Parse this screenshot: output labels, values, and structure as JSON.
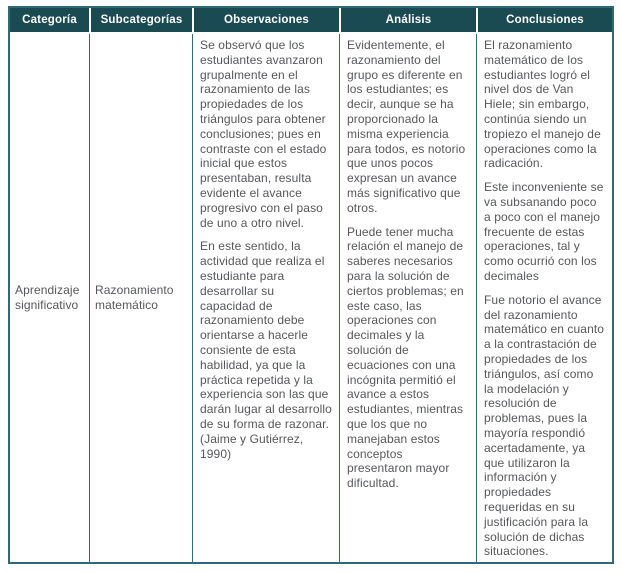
{
  "colors": {
    "header_background": "#1a4a52",
    "header_text": "#ffffff",
    "border": "#2e6b76",
    "body_text": "#56575a"
  },
  "table": {
    "headers": [
      "Categoría",
      "Subcategorías",
      "Observaciones",
      "Análisis",
      "Conclusiones"
    ],
    "row": {
      "categoria": "Aprendizaje significativo",
      "subcategorias": "Razonamiento matemático",
      "observaciones": [
        "Se observó que los estudiantes avanzaron grupalmente en el razonamiento de las propiedades de los triángulos para obtener conclusiones; pues en contraste con el estado inicial que estos presentaban, resulta evidente el avance progresivo con el paso de uno a otro nivel.",
        "En este sentido, la actividad que realiza el estudiante para desarrollar su capacidad de razonamiento debe orientarse a hacerle consiente de esta habilidad, ya que la práctica repetida y la experiencia son las que darán lugar al desarrollo de su forma de razonar. (Jaime y Gutiérrez, 1990)"
      ],
      "analisis": [
        "Evidentemente, el razonamiento del grupo es diferente en los estudiantes; es decir, aunque se ha proporcionado la misma experiencia para todos, es notorio que unos pocos expresan un avance más significativo que otros.",
        "Puede tener mucha relación el manejo de saberes necesarios para la solución de ciertos problemas; en este caso, las operaciones con decimales y la solución de ecuaciones con una incógnita permitió el avance a estos estudiantes, mientras que los que no manejaban estos conceptos presentaron mayor dificultad."
      ],
      "conclusiones": [
        "El razonamiento matemático de los estudiantes logró el nivel dos de Van Hiele; sin embargo, continúa siendo un tropiezo el manejo de operaciones como la radicación.",
        "Este inconveniente se va subsanando poco a poco con el manejo frecuente de estas operaciones, tal y como ocurrió con los decimales",
        "Fue notorio el avance del razonamiento matemático en cuanto a la contrastación de propiedades de los triángulos, así como la modelación y resolución de problemas, pues la mayoría respondió acertadamente, ya que utilizaron la información y propiedades requeridas en su justificación para la solución de dichas situaciones."
      ]
    }
  }
}
